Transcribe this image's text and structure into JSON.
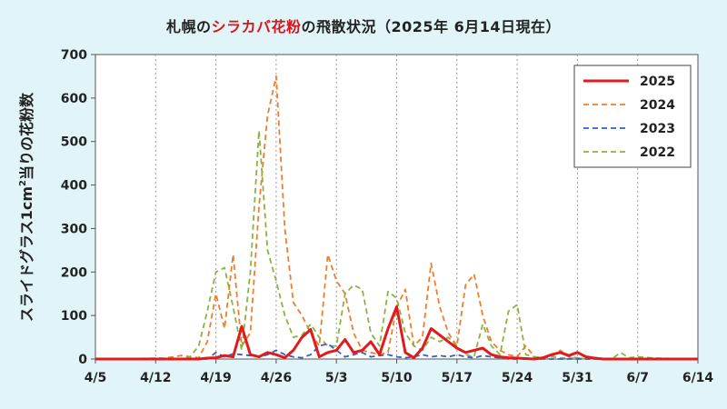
{
  "chart_data": {
    "type": "line",
    "title": "",
    "title_parts": [
      "札幌の",
      "シラカバ花粉",
      "の飛散状況（2025年 6月14日現在）"
    ],
    "ylabel_parts": [
      "スライドグラス1cm",
      "2",
      "当りの花粉数"
    ],
    "xlabel": "",
    "ylim": [
      0,
      700
    ],
    "yticks": [
      0,
      100,
      200,
      300,
      400,
      500,
      600,
      700
    ],
    "x_ticks": [
      "4/5",
      "4/12",
      "4/19",
      "4/26",
      "5/3",
      "5/10",
      "5/17",
      "5/24",
      "5/31",
      "6/7",
      "6/14"
    ],
    "x_start": "4/5",
    "grid": "vertical-dotted",
    "legend_position": "top-right",
    "series": [
      {
        "name": "2025",
        "color": "#e31a1c",
        "dash": "solid",
        "points": [
          [
            0,
            0
          ],
          [
            12,
            0
          ],
          [
            13,
            2
          ],
          [
            14,
            3
          ],
          [
            15,
            8
          ],
          [
            16,
            5
          ],
          [
            17,
            75
          ],
          [
            18,
            10
          ],
          [
            19,
            5
          ],
          [
            20,
            15
          ],
          [
            21,
            10
          ],
          [
            22,
            3
          ],
          [
            23,
            20
          ],
          [
            24,
            50
          ],
          [
            25,
            68
          ],
          [
            26,
            5
          ],
          [
            27,
            15
          ],
          [
            28,
            20
          ],
          [
            29,
            45
          ],
          [
            30,
            15
          ],
          [
            31,
            20
          ],
          [
            32,
            40
          ],
          [
            33,
            10
          ],
          [
            34,
            70
          ],
          [
            35,
            120
          ],
          [
            36,
            15
          ],
          [
            37,
            3
          ],
          [
            38,
            25
          ],
          [
            39,
            70
          ],
          [
            40,
            55
          ],
          [
            41,
            40
          ],
          [
            42,
            25
          ],
          [
            43,
            15
          ],
          [
            44,
            20
          ],
          [
            45,
            25
          ],
          [
            46,
            10
          ],
          [
            47,
            5
          ],
          [
            48,
            3
          ],
          [
            49,
            2
          ],
          [
            50,
            1
          ],
          [
            51,
            0
          ],
          [
            52,
            3
          ],
          [
            53,
            10
          ],
          [
            54,
            15
          ],
          [
            55,
            8
          ],
          [
            56,
            15
          ],
          [
            57,
            5
          ],
          [
            58,
            2
          ],
          [
            59,
            0
          ],
          [
            60,
            0
          ],
          [
            70,
            0
          ]
        ]
      },
      {
        "name": "2024",
        "color": "#f07d2b",
        "dash": "dashed",
        "points": [
          [
            0,
            0
          ],
          [
            8,
            2
          ],
          [
            9,
            5
          ],
          [
            10,
            8
          ],
          [
            11,
            5
          ],
          [
            12,
            3
          ],
          [
            13,
            40
          ],
          [
            14,
            150
          ],
          [
            15,
            70
          ],
          [
            16,
            240
          ],
          [
            17,
            30
          ],
          [
            18,
            60
          ],
          [
            19,
            350
          ],
          [
            20,
            560
          ],
          [
            21,
            650
          ],
          [
            22,
            300
          ],
          [
            23,
            130
          ],
          [
            24,
            100
          ],
          [
            25,
            60
          ],
          [
            26,
            30
          ],
          [
            27,
            240
          ],
          [
            28,
            180
          ],
          [
            29,
            150
          ],
          [
            30,
            60
          ],
          [
            31,
            20
          ],
          [
            32,
            15
          ],
          [
            33,
            10
          ],
          [
            34,
            15
          ],
          [
            35,
            120
          ],
          [
            36,
            160
          ],
          [
            37,
            30
          ],
          [
            38,
            50
          ],
          [
            39,
            220
          ],
          [
            40,
            120
          ],
          [
            41,
            60
          ],
          [
            42,
            30
          ],
          [
            43,
            170
          ],
          [
            44,
            195
          ],
          [
            45,
            100
          ],
          [
            46,
            40
          ],
          [
            47,
            20
          ],
          [
            48,
            10
          ],
          [
            49,
            5
          ],
          [
            50,
            30
          ],
          [
            51,
            5
          ],
          [
            52,
            3
          ],
          [
            53,
            5
          ],
          [
            54,
            20
          ],
          [
            55,
            5
          ],
          [
            56,
            3
          ],
          [
            57,
            0
          ],
          [
            70,
            0
          ]
        ]
      },
      {
        "name": "2023",
        "color": "#2f5fd0",
        "dash": "dashed",
        "points": [
          [
            0,
            0
          ],
          [
            13,
            0
          ],
          [
            14,
            15
          ],
          [
            15,
            5
          ],
          [
            16,
            12
          ],
          [
            17,
            10
          ],
          [
            18,
            8
          ],
          [
            19,
            5
          ],
          [
            20,
            10
          ],
          [
            21,
            20
          ],
          [
            22,
            10
          ],
          [
            23,
            5
          ],
          [
            24,
            3
          ],
          [
            25,
            10
          ],
          [
            26,
            30
          ],
          [
            27,
            35
          ],
          [
            28,
            20
          ],
          [
            29,
            5
          ],
          [
            30,
            10
          ],
          [
            31,
            15
          ],
          [
            32,
            5
          ],
          [
            33,
            8
          ],
          [
            34,
            10
          ],
          [
            35,
            5
          ],
          [
            36,
            3
          ],
          [
            37,
            5
          ],
          [
            38,
            10
          ],
          [
            39,
            5
          ],
          [
            40,
            8
          ],
          [
            41,
            5
          ],
          [
            42,
            10
          ],
          [
            43,
            5
          ],
          [
            44,
            3
          ],
          [
            45,
            8
          ],
          [
            46,
            5
          ],
          [
            47,
            3
          ],
          [
            48,
            0
          ],
          [
            70,
            0
          ]
        ]
      },
      {
        "name": "2022",
        "color": "#8ab33f",
        "dash": "dashed",
        "points": [
          [
            0,
            0
          ],
          [
            10,
            0
          ],
          [
            11,
            5
          ],
          [
            12,
            30
          ],
          [
            13,
            110
          ],
          [
            14,
            200
          ],
          [
            15,
            210
          ],
          [
            16,
            120
          ],
          [
            17,
            20
          ],
          [
            18,
            200
          ],
          [
            19,
            525
          ],
          [
            20,
            250
          ],
          [
            21,
            180
          ],
          [
            22,
            100
          ],
          [
            23,
            50
          ],
          [
            24,
            55
          ],
          [
            25,
            80
          ],
          [
            26,
            50
          ],
          [
            27,
            30
          ],
          [
            28,
            30
          ],
          [
            29,
            150
          ],
          [
            30,
            170
          ],
          [
            31,
            160
          ],
          [
            32,
            60
          ],
          [
            33,
            30
          ],
          [
            34,
            155
          ],
          [
            35,
            140
          ],
          [
            36,
            60
          ],
          [
            37,
            30
          ],
          [
            38,
            20
          ],
          [
            39,
            50
          ],
          [
            40,
            40
          ],
          [
            41,
            50
          ],
          [
            42,
            30
          ],
          [
            43,
            10
          ],
          [
            44,
            5
          ],
          [
            45,
            80
          ],
          [
            46,
            30
          ],
          [
            47,
            10
          ],
          [
            48,
            110
          ],
          [
            49,
            125
          ],
          [
            50,
            10
          ],
          [
            51,
            5
          ],
          [
            52,
            3
          ],
          [
            53,
            5
          ],
          [
            54,
            3
          ],
          [
            55,
            2
          ],
          [
            60,
            0
          ],
          [
            61,
            15
          ],
          [
            62,
            3
          ],
          [
            63,
            5
          ],
          [
            65,
            2
          ],
          [
            70,
            0
          ]
        ]
      }
    ]
  },
  "style": {
    "background": "#e1f4f7",
    "plot_background": "#ffffff",
    "accent": "#d8141c"
  }
}
